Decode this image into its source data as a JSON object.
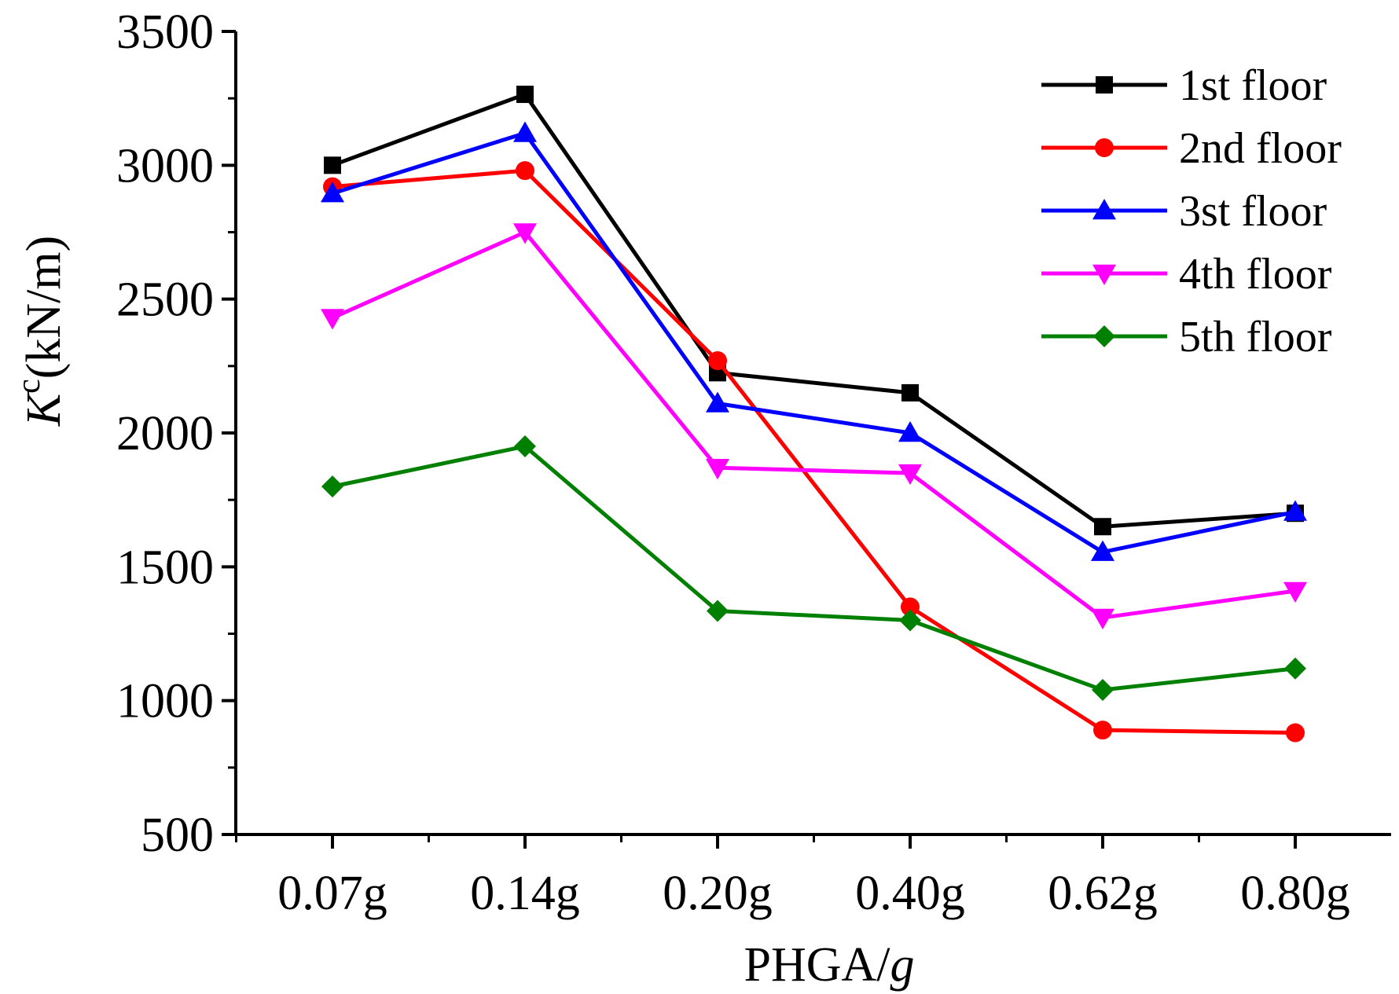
{
  "chart_data": {
    "type": "line",
    "xlabel": "PHGA/",
    "xlabel_italic": "g",
    "ylabel_italic": "K",
    "ylabel_sup": "c",
    "ylabel": "(kN/m)",
    "categories": [
      "0.07g",
      "0.14g",
      "0.20g",
      "0.40g",
      "0.62g",
      "0.80g"
    ],
    "ylim": [
      500,
      3500
    ],
    "yticks": [
      500,
      1000,
      1500,
      2000,
      2500,
      3000,
      3500
    ],
    "grid": false,
    "legend_position": "top-right",
    "series": [
      {
        "name": "1st floor",
        "color": "#000000",
        "marker": "square",
        "values": [
          3000,
          3265,
          2225,
          2150,
          1650,
          1700
        ]
      },
      {
        "name": "2nd floor",
        "color": "#ff0000",
        "marker": "circle",
        "values": [
          2920,
          2980,
          2270,
          1350,
          890,
          880
        ]
      },
      {
        "name": "3st floor",
        "color": "#0000ff",
        "marker": "triangle-up",
        "values": [
          2895,
          3120,
          2110,
          2000,
          1555,
          1705
        ]
      },
      {
        "name": "4th floor",
        "color": "#ff00ff",
        "marker": "triangle-down",
        "values": [
          2430,
          2750,
          1870,
          1850,
          1310,
          1410
        ]
      },
      {
        "name": "5th floor",
        "color": "#008000",
        "marker": "diamond",
        "values": [
          1800,
          1950,
          1335,
          1300,
          1040,
          1120
        ]
      }
    ]
  }
}
